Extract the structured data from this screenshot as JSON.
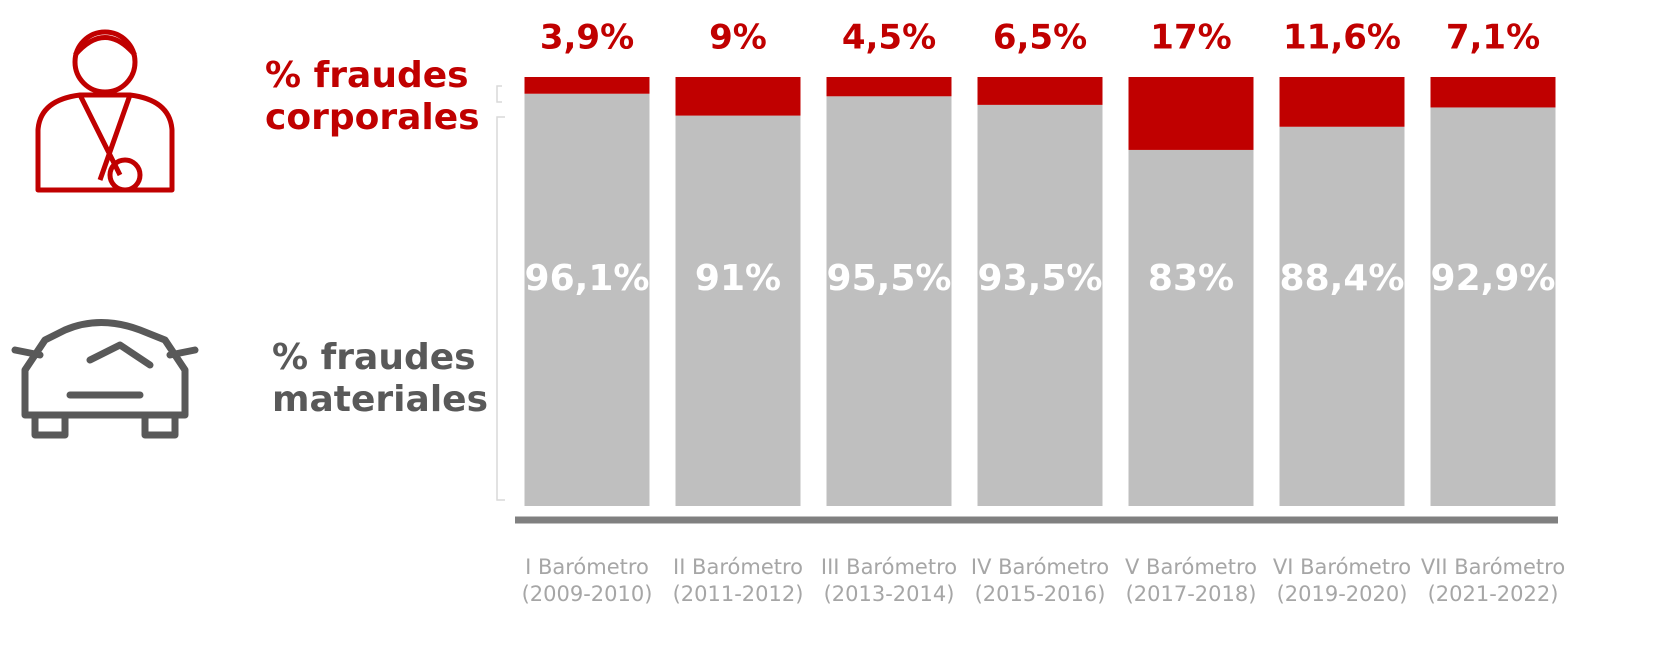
{
  "chart_data": {
    "type": "stacked_bar",
    "categories": [
      [
        "I Barómetro",
        "(2009-2010)"
      ],
      [
        "II Barómetro",
        "(2011-2012)"
      ],
      [
        "III Barómetro",
        "(2013-2014)"
      ],
      [
        "IV Barómetro",
        "(2015-2016)"
      ],
      [
        "V Barómetro",
        "(2017-2018)"
      ],
      [
        "VI Barómetro",
        "(2019-2020)"
      ],
      [
        "VII Barómetro",
        "(2021-2022)"
      ]
    ],
    "series": [
      {
        "name": "% fraudes materiales",
        "color": "#bfbfbf",
        "values": [
          96.1,
          91,
          95.5,
          93.5,
          83,
          88.4,
          92.9
        ],
        "value_labels": [
          "96,1%",
          "91%",
          "95,5%",
          "93,5%",
          "83%",
          "88,4%",
          "92,9%"
        ]
      },
      {
        "name": "% fraudes corporales",
        "color": "#c00000",
        "values": [
          3.9,
          9,
          4.5,
          6.5,
          17,
          11.6,
          7.1
        ],
        "value_labels": [
          "3,9%",
          "9%",
          "4,5%",
          "6,5%",
          "17%",
          "11,6%",
          "7,1%"
        ]
      }
    ],
    "ylim": [
      0,
      100
    ]
  }
}
